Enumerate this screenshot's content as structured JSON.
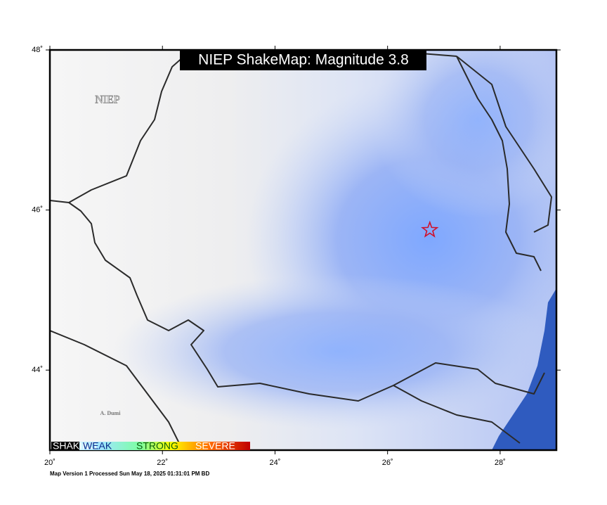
{
  "map": {
    "title": "NIEP ShakeMap: Magnitude 3.8",
    "watermark": "NIEP",
    "place_label": "A. Dumi",
    "xlim": [
      20,
      29
    ],
    "ylim": [
      43,
      48
    ],
    "xticks": [
      {
        "value": 20,
        "label": "20˚"
      },
      {
        "value": 22,
        "label": "22˚"
      },
      {
        "value": 24,
        "label": "24˚"
      },
      {
        "value": 26,
        "label": "26˚"
      },
      {
        "value": 28,
        "label": "28˚"
      }
    ],
    "yticks": [
      {
        "value": 44,
        "label": "44˚"
      },
      {
        "value": 46,
        "label": "46˚"
      },
      {
        "value": 48,
        "label": "48˚"
      }
    ],
    "epicenter": {
      "lon": 26.75,
      "lat": 45.75
    },
    "legend": [
      "SHAKING",
      "WEAK",
      "STRONG",
      "SEVERE"
    ],
    "footer": "Map Version 1 Processed Sun May 18, 2025 01:31:01 PM BD"
  }
}
